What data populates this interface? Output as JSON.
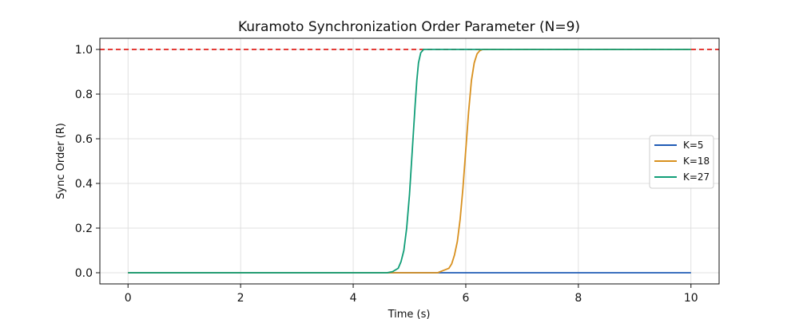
{
  "chart_data": {
    "type": "line",
    "title": "Kuramoto Synchronization Order Parameter (N=9)",
    "xlabel": "Time (s)",
    "ylabel": "Sync Order (R)",
    "xlim": [
      -0.5,
      10.5
    ],
    "ylim": [
      -0.05,
      1.05
    ],
    "xticks": [
      0,
      2,
      4,
      6,
      8,
      10
    ],
    "yticks": [
      0.0,
      0.2,
      0.4,
      0.6,
      0.8,
      1.0
    ],
    "xtick_labels": [
      "0",
      "2",
      "4",
      "6",
      "8",
      "10"
    ],
    "ytick_labels": [
      "0.0",
      "0.2",
      "0.4",
      "0.6",
      "0.8",
      "1.0"
    ],
    "grid": true,
    "legend_position": "center-right",
    "reference_line": {
      "y": 1.0,
      "style": "dashed",
      "color": "#e0201b"
    },
    "series": [
      {
        "name": "K=5",
        "color": "#1f5bb5",
        "x": [
          0,
          10
        ],
        "y": [
          0.0,
          0.0
        ]
      },
      {
        "name": "K=18",
        "color": "#d8901e",
        "x": [
          0,
          5.5,
          5.6,
          5.7,
          5.75,
          5.8,
          5.85,
          5.9,
          5.95,
          6.0,
          6.05,
          6.1,
          6.15,
          6.2,
          6.25,
          6.3,
          6.4,
          10
        ],
        "y": [
          0.0,
          0.0,
          0.01,
          0.02,
          0.04,
          0.08,
          0.14,
          0.24,
          0.38,
          0.55,
          0.72,
          0.86,
          0.94,
          0.98,
          0.995,
          1.0,
          1.0,
          1.0
        ]
      },
      {
        "name": "K=27",
        "color": "#119e78",
        "x": [
          0,
          4.6,
          4.7,
          4.8,
          4.85,
          4.9,
          4.95,
          5.0,
          5.05,
          5.1,
          5.13,
          5.16,
          5.2,
          5.25,
          5.3,
          10
        ],
        "y": [
          0.0,
          0.0,
          0.005,
          0.02,
          0.05,
          0.1,
          0.2,
          0.35,
          0.55,
          0.75,
          0.86,
          0.94,
          0.985,
          1.0,
          1.0,
          1.0
        ]
      }
    ]
  }
}
